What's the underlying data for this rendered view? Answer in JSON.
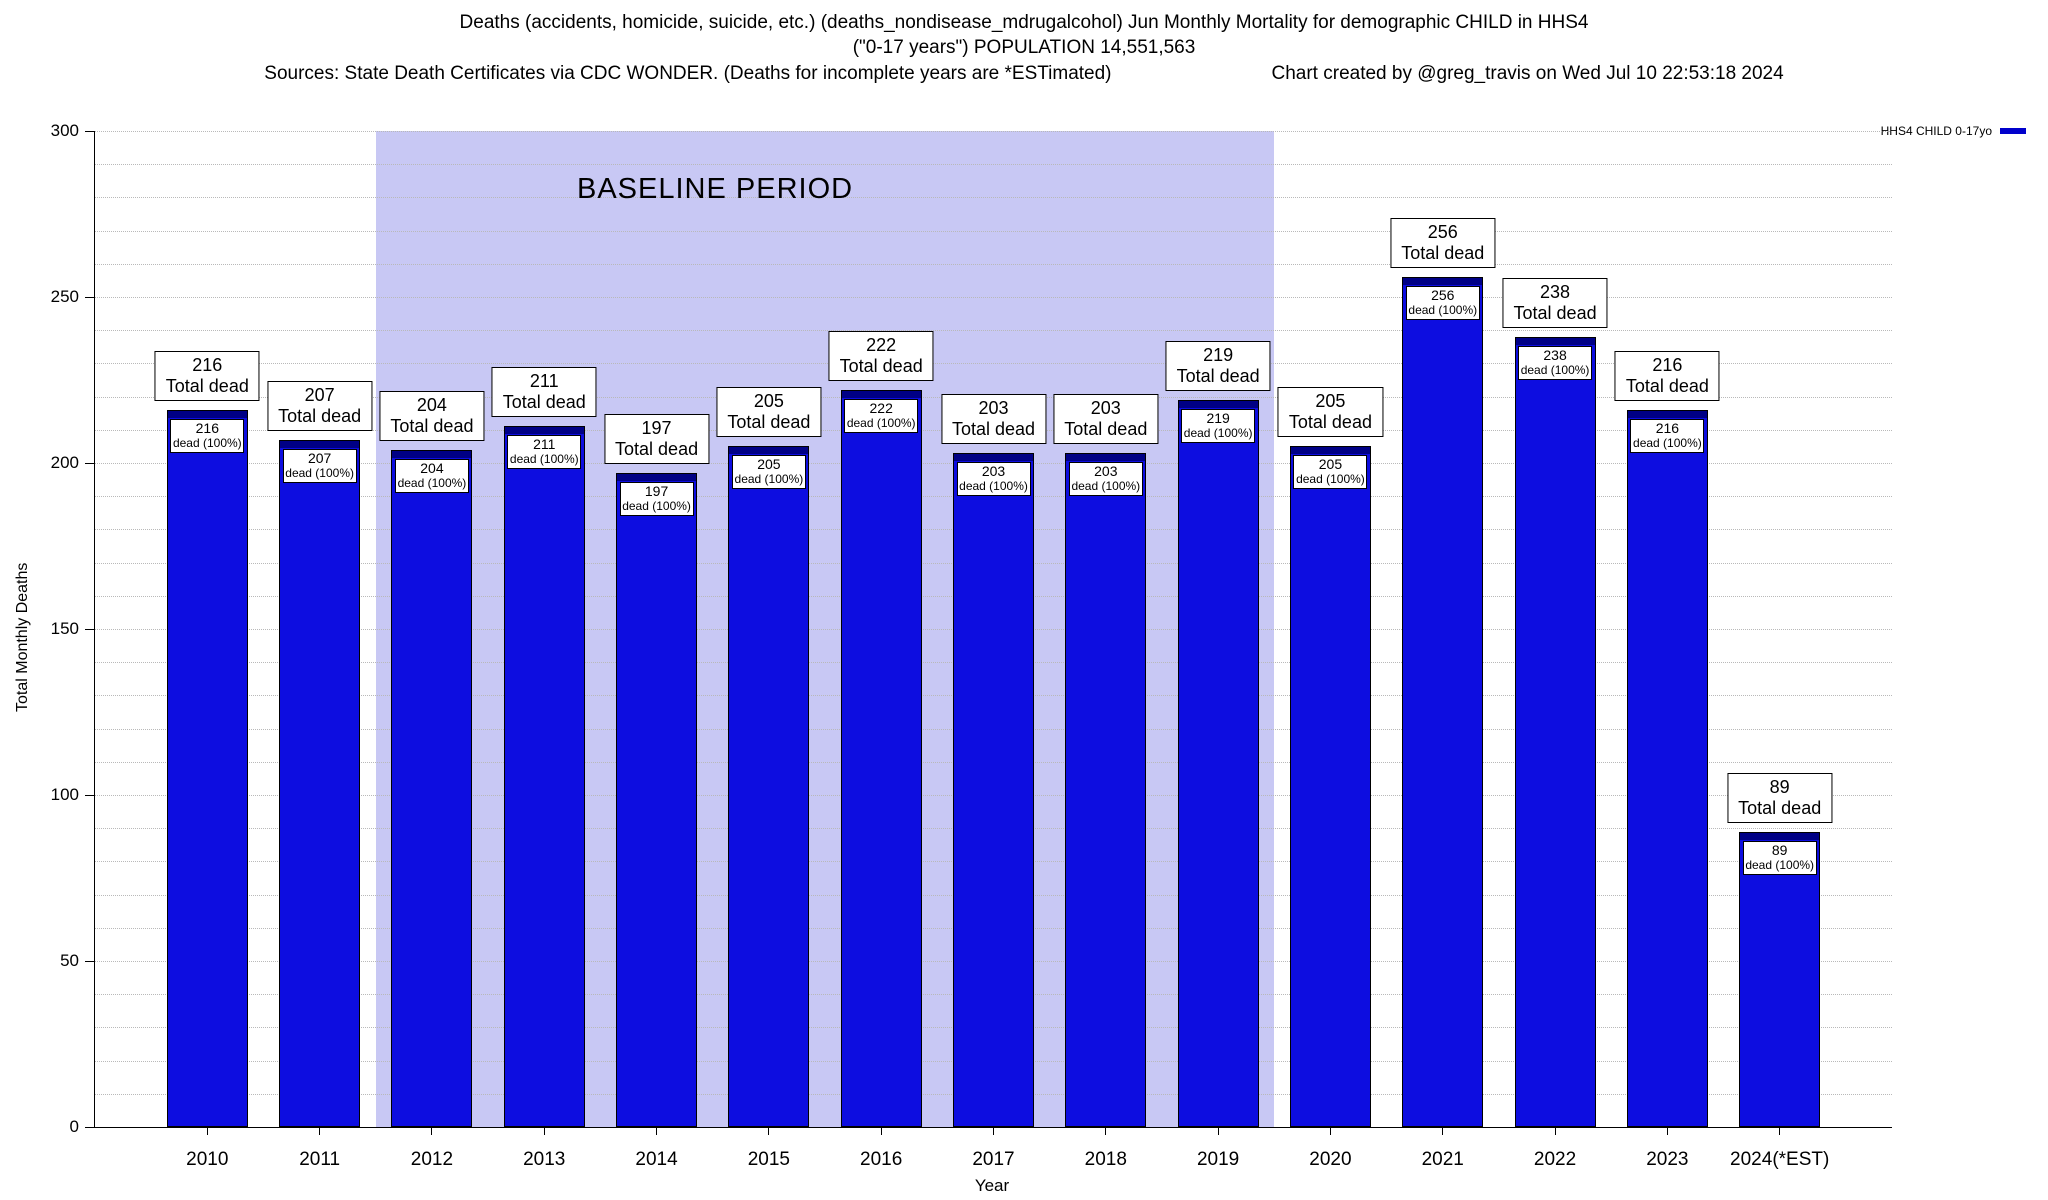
{
  "header": {
    "title_line1": "Deaths (accidents, homicide, suicide, etc.) (deaths_nondisease_mdrugalcohol) Jun Monthly Mortality for demographic CHILD in HHS4",
    "title_line2": "(\"0-17 years\") POPULATION 14,551,563",
    "sources": "Sources: State Death Certificates via CDC WONDER. (Deaths for incomplete years are *ESTimated)",
    "credit": "Chart created by @greg_travis on Wed Jul 10 22:53:18 2024"
  },
  "legend": {
    "label": "HHS4 CHILD 0-17yo",
    "color": "#0000cc"
  },
  "chart_data": {
    "type": "bar",
    "title": "Deaths (accidents, homicide, suicide, etc.) (deaths_nondisease_mdrugalcohol) Jun Monthly Mortality for demographic CHILD in HHS4 (\"0-17 years\") POPULATION 14,551,563",
    "xlabel": "Year",
    "ylabel": "Total Monthly Deaths",
    "ylim": [
      0,
      300
    ],
    "yticks": [
      0,
      50,
      100,
      150,
      200,
      250,
      300
    ],
    "grid": "horizontal dotted lines every 10 units",
    "legend_position": "top-right outside plot",
    "categories": [
      "2010",
      "2011",
      "2012",
      "2013",
      "2014",
      "2015",
      "2016",
      "2017",
      "2018",
      "2019",
      "2020",
      "2021",
      "2022",
      "2023",
      "2024(*EST)"
    ],
    "values": [
      216,
      207,
      204,
      211,
      197,
      205,
      222,
      203,
      203,
      219,
      205,
      256,
      238,
      216,
      89
    ],
    "outer_label_caption": "Total dead",
    "inner_label_caption": "dead (100%)",
    "baseline": {
      "label": "BASELINE PERIOD",
      "from": "2012",
      "to": "2019",
      "fill": "#c8c8f4"
    },
    "colors": {
      "bar": "#0d0de0",
      "bar_cap": "#000085",
      "grid": "#b9b9b9"
    }
  }
}
